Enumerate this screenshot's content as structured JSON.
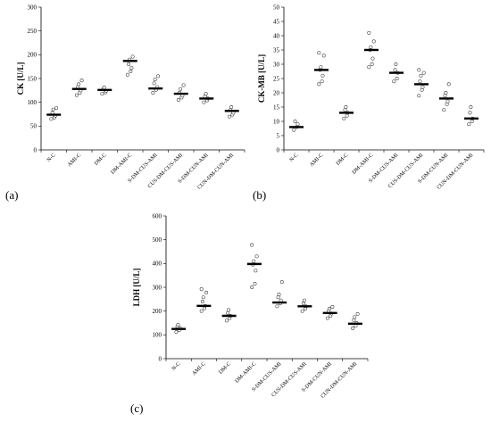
{
  "figure": {
    "panels": [
      "(a)",
      "(b)",
      "(c)"
    ]
  },
  "chart_data": [
    {
      "type": "scatter",
      "panel": "(a)",
      "ylabel": "CK [U/L]",
      "xlabel": "",
      "ylim": [
        0,
        300
      ],
      "yticks": [
        0,
        50,
        100,
        150,
        200,
        250,
        300
      ],
      "categories": [
        "N-C",
        "AMI-C",
        "DM-C",
        "DM-AMI-C",
        "S-DM-CUS-AMI",
        "CUS-DM-CUS-AMI",
        "S-DM-CUN-AMI",
        "CUN-DM-CUN-AMI"
      ],
      "means": [
        74,
        128,
        126,
        187,
        129,
        118,
        108,
        82
      ],
      "points": [
        [
          65,
          68,
          72,
          78,
          85,
          88
        ],
        [
          115,
          120,
          125,
          132,
          138,
          146
        ],
        [
          118,
          121,
          124,
          128,
          131
        ],
        [
          158,
          165,
          172,
          180,
          190,
          196
        ],
        [
          120,
          126,
          132,
          140,
          148,
          155
        ],
        [
          105,
          110,
          114,
          120,
          128,
          136
        ],
        [
          100,
          104,
          108,
          112,
          118
        ],
        [
          70,
          74,
          78,
          84,
          90
        ]
      ],
      "grid": false
    },
    {
      "type": "scatter",
      "panel": "(b)",
      "ylabel": "CK-MB [U/L]",
      "xlabel": "",
      "ylim": [
        0,
        50
      ],
      "yticks": [
        0,
        5,
        10,
        15,
        20,
        25,
        30,
        35,
        40,
        45,
        50
      ],
      "categories": [
        "N-C",
        "AMI-C",
        "DM-C",
        "DM-AMI-C",
        "S-DM-CUS-AMI",
        "CUS-DM-CUS-AMI",
        "S-DM-CUN-AMI",
        "CUN-DM-CUN-AMI"
      ],
      "means": [
        8,
        28,
        13,
        35,
        27,
        23,
        18,
        11
      ],
      "points": [
        [
          7,
          8,
          9,
          10
        ],
        [
          23,
          24,
          26,
          28,
          29,
          33,
          34
        ],
        [
          11,
          12,
          13,
          14,
          15
        ],
        [
          29,
          30,
          32,
          35,
          36,
          38,
          41
        ],
        [
          24,
          25,
          27,
          28,
          30
        ],
        [
          19,
          21,
          22,
          24,
          26,
          27,
          28
        ],
        [
          14,
          16,
          17,
          19,
          20,
          23
        ],
        [
          9,
          10,
          11,
          13,
          15
        ]
      ],
      "grid": false
    },
    {
      "type": "scatter",
      "panel": "(c)",
      "ylabel": "LDH [U/L]",
      "xlabel": "",
      "ylim": [
        0,
        600
      ],
      "yticks": [
        0,
        100,
        200,
        300,
        400,
        500,
        600
      ],
      "categories": [
        "N-C",
        "AMI-C",
        "DM-C",
        "DM-AMI-C",
        "S-DM-CUS-AMI",
        "CUS-DM-CUS-AMI",
        "S-DM-CUN-AMI",
        "CUN-DM-CUN-AMI"
      ],
      "means": [
        125,
        222,
        180,
        398,
        236,
        220,
        192,
        147
      ],
      "points": [
        [
          112,
          120,
          128,
          135,
          142
        ],
        [
          200,
          212,
          222,
          240,
          258,
          278,
          292
        ],
        [
          160,
          170,
          180,
          192,
          205
        ],
        [
          300,
          315,
          370,
          395,
          410,
          430,
          478
        ],
        [
          220,
          232,
          245,
          258,
          270,
          322
        ],
        [
          200,
          210,
          220,
          232,
          245
        ],
        [
          170,
          180,
          190,
          200,
          210,
          218
        ],
        [
          128,
          138,
          150,
          162,
          175,
          188
        ]
      ],
      "grid": false
    }
  ]
}
